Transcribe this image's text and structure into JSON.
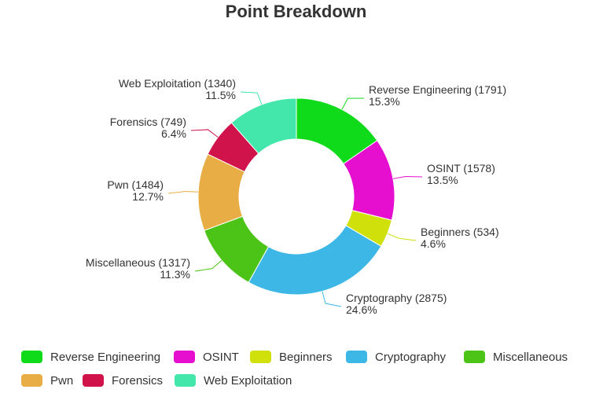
{
  "chart_data": {
    "type": "pie",
    "title": "Point Breakdown",
    "legend_position": "bottom",
    "slices": [
      {
        "name": "Reverse Engineering",
        "value": 1791,
        "percent_label": "15.3%",
        "color": "#0fdb1b"
      },
      {
        "name": "OSINT",
        "value": 1578,
        "percent_label": "13.5%",
        "color": "#e60ecf"
      },
      {
        "name": "Beginners",
        "value": 534,
        "percent_label": "4.6%",
        "color": "#cfe00b"
      },
      {
        "name": "Cryptography",
        "value": 2875,
        "percent_label": "24.6%",
        "color": "#3db8e6"
      },
      {
        "name": "Miscellaneous",
        "value": 1317,
        "percent_label": "11.3%",
        "color": "#4cc417"
      },
      {
        "name": "Pwn",
        "value": 1484,
        "percent_label": "12.7%",
        "color": "#e8ae45"
      },
      {
        "name": "Forensics",
        "value": 749,
        "percent_label": "6.4%",
        "color": "#d0134a"
      },
      {
        "name": "Web Exploitation",
        "value": 1340,
        "percent_label": "11.5%",
        "color": "#43e6ab"
      }
    ]
  }
}
